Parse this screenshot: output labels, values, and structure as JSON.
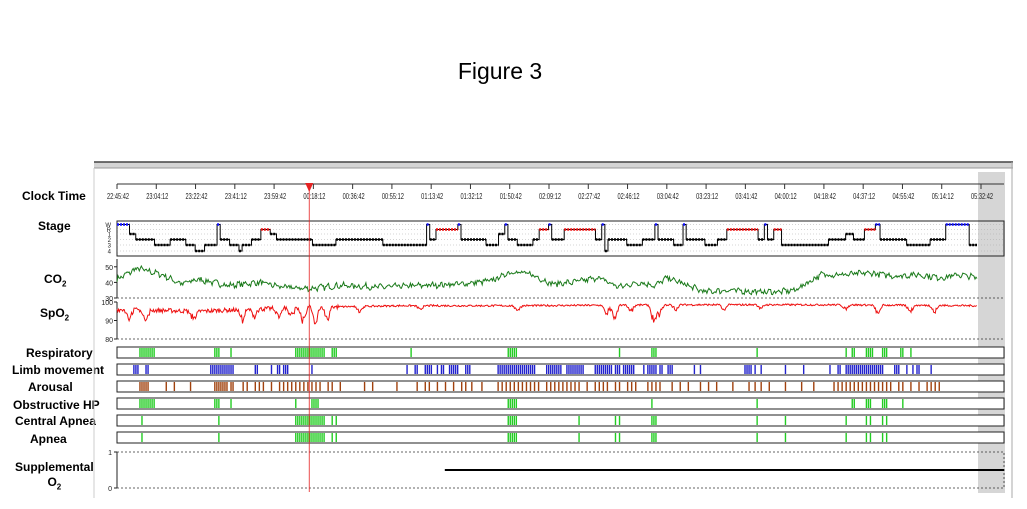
{
  "figure_title": "Figure 3",
  "colors": {
    "stage_black": "#000000",
    "stage_blue": "#1010ff",
    "stage_red": "#ee1111",
    "co2": "#1a7a1a",
    "spo2": "#ee1111",
    "event_green": "#22cc22",
    "limb": "#2222cc",
    "arousal": "#a0410d",
    "cursor": "#e62222",
    "supplemental": "#000000"
  },
  "chart_data": {
    "type": "line",
    "x_axis": {
      "label": "Clock Time",
      "ticks": [
        "22:45:42",
        "23:04:12",
        "23:22:42",
        "23:41:12",
        "23:59:42",
        "00:18:12",
        "00:36:42",
        "00:55:12",
        "01:13:42",
        "01:32:12",
        "01:50:42",
        "02:09:12",
        "02:27:42",
        "02:46:12",
        "03:04:42",
        "03:23:12",
        "03:41:42",
        "04:00:12",
        "04:18:42",
        "04:37:12",
        "04:55:42",
        "05:14:12",
        "05:32:42"
      ],
      "start_minutes": 0,
      "end_minutes": 425,
      "cursor_minutes": 95
    },
    "stage": {
      "label": "Stage",
      "ticks": [
        "W",
        "R",
        "1",
        "2",
        "3",
        "4"
      ],
      "segments": [
        {
          "start": 0,
          "end": 8,
          "stage": "W"
        },
        {
          "start": 8,
          "end": 12,
          "stage": "1"
        },
        {
          "start": 12,
          "end": 24,
          "stage": "2"
        },
        {
          "start": 24,
          "end": 34,
          "stage": "3"
        },
        {
          "start": 34,
          "end": 44,
          "stage": "2"
        },
        {
          "start": 44,
          "end": 50,
          "stage": "3"
        },
        {
          "start": 50,
          "end": 56,
          "stage": "4"
        },
        {
          "start": 56,
          "end": 64,
          "stage": "3"
        },
        {
          "start": 64,
          "end": 66,
          "stage": "W"
        },
        {
          "start": 66,
          "end": 72,
          "stage": "2"
        },
        {
          "start": 72,
          "end": 78,
          "stage": "3"
        },
        {
          "start": 78,
          "end": 80,
          "stage": "4"
        },
        {
          "start": 80,
          "end": 86,
          "stage": "3"
        },
        {
          "start": 86,
          "end": 92,
          "stage": "2"
        },
        {
          "start": 92,
          "end": 98,
          "stage": "R"
        },
        {
          "start": 98,
          "end": 102,
          "stage": "1"
        },
        {
          "start": 102,
          "end": 125,
          "stage": "2"
        },
        {
          "start": 125,
          "end": 140,
          "stage": "3"
        },
        {
          "start": 140,
          "end": 170,
          "stage": "2"
        },
        {
          "start": 170,
          "end": 198,
          "stage": "3"
        },
        {
          "start": 198,
          "end": 200,
          "stage": "W"
        },
        {
          "start": 200,
          "end": 204,
          "stage": "2"
        },
        {
          "start": 204,
          "end": 218,
          "stage": "R"
        },
        {
          "start": 218,
          "end": 220,
          "stage": "W"
        },
        {
          "start": 220,
          "end": 236,
          "stage": "2"
        },
        {
          "start": 236,
          "end": 244,
          "stage": "3"
        },
        {
          "start": 244,
          "end": 248,
          "stage": "1"
        },
        {
          "start": 248,
          "end": 250,
          "stage": "W"
        },
        {
          "start": 250,
          "end": 256,
          "stage": "2"
        },
        {
          "start": 256,
          "end": 266,
          "stage": "3"
        },
        {
          "start": 266,
          "end": 270,
          "stage": "2"
        },
        {
          "start": 270,
          "end": 276,
          "stage": "R"
        },
        {
          "start": 276,
          "end": 278,
          "stage": "W"
        },
        {
          "start": 278,
          "end": 286,
          "stage": "2"
        },
        {
          "start": 286,
          "end": 306,
          "stage": "R"
        },
        {
          "start": 306,
          "end": 310,
          "stage": "2"
        },
        {
          "start": 310,
          "end": 312,
          "stage": "W"
        },
        {
          "start": 312,
          "end": 314,
          "stage": "4"
        },
        {
          "start": 314,
          "end": 326,
          "stage": "2"
        },
        {
          "start": 326,
          "end": 336,
          "stage": "3"
        },
        {
          "start": 336,
          "end": 344,
          "stage": "2"
        },
        {
          "start": 344,
          "end": 346,
          "stage": "W"
        },
        {
          "start": 346,
          "end": 356,
          "stage": "2"
        },
        {
          "start": 356,
          "end": 362,
          "stage": "3"
        },
        {
          "start": 362,
          "end": 364,
          "stage": "W"
        },
        {
          "start": 364,
          "end": 376,
          "stage": "2"
        },
        {
          "start": 376,
          "end": 384,
          "stage": "3"
        },
        {
          "start": 384,
          "end": 390,
          "stage": "2"
        },
        {
          "start": 390,
          "end": 410,
          "stage": "R"
        },
        {
          "start": 410,
          "end": 414,
          "stage": "2"
        },
        {
          "start": 414,
          "end": 416,
          "stage": "W"
        },
        {
          "start": 416,
          "end": 420,
          "stage": "2"
        },
        {
          "start": 420,
          "end": 425,
          "stage": "R"
        },
        {
          "start": 425,
          "end": 455,
          "stage": "3"
        },
        {
          "start": 455,
          "end": 466,
          "stage": "2"
        },
        {
          "start": 466,
          "end": 471,
          "stage": "1"
        },
        {
          "start": 471,
          "end": 478,
          "stage": "2"
        },
        {
          "start": 478,
          "end": 485,
          "stage": "R"
        },
        {
          "start": 485,
          "end": 488,
          "stage": "W"
        },
        {
          "start": 488,
          "end": 505,
          "stage": "2"
        },
        {
          "start": 505,
          "end": 520,
          "stage": "3"
        },
        {
          "start": 520,
          "end": 530,
          "stage": "2"
        },
        {
          "start": 530,
          "end": 545,
          "stage": "W"
        },
        {
          "start": 545,
          "end": 550,
          "stage": "3"
        }
      ]
    },
    "co2": {
      "label": "CO2",
      "ticks": [
        30,
        40,
        50
      ],
      "ylim": [
        30,
        55
      ],
      "levels": [
        {
          "t": 0,
          "v": 42
        },
        {
          "t": 10,
          "v": 49
        },
        {
          "t": 22,
          "v": 45
        },
        {
          "t": 32,
          "v": 39
        },
        {
          "t": 40,
          "v": 42
        },
        {
          "t": 55,
          "v": 38
        },
        {
          "t": 70,
          "v": 40
        },
        {
          "t": 82,
          "v": 37
        },
        {
          "t": 95,
          "v": 36
        },
        {
          "t": 110,
          "v": 38
        },
        {
          "t": 130,
          "v": 37
        },
        {
          "t": 150,
          "v": 38
        },
        {
          "t": 170,
          "v": 39
        },
        {
          "t": 185,
          "v": 41
        },
        {
          "t": 195,
          "v": 47
        },
        {
          "t": 205,
          "v": 45
        },
        {
          "t": 215,
          "v": 39
        },
        {
          "t": 225,
          "v": 40
        },
        {
          "t": 238,
          "v": 43
        },
        {
          "t": 248,
          "v": 37
        },
        {
          "t": 258,
          "v": 40
        },
        {
          "t": 266,
          "v": 38
        },
        {
          "t": 272,
          "v": 43
        },
        {
          "t": 282,
          "v": 38
        },
        {
          "t": 290,
          "v": 34
        },
        {
          "t": 302,
          "v": 35
        },
        {
          "t": 315,
          "v": 34
        },
        {
          "t": 327,
          "v": 34
        },
        {
          "t": 335,
          "v": 35
        },
        {
          "t": 348,
          "v": 45
        },
        {
          "t": 360,
          "v": 45
        },
        {
          "t": 372,
          "v": 46
        },
        {
          "t": 385,
          "v": 44
        },
        {
          "t": 395,
          "v": 45
        },
        {
          "t": 408,
          "v": 43
        },
        {
          "t": 416,
          "v": 45
        },
        {
          "t": 425,
          "v": 43
        }
      ]
    },
    "spo2": {
      "label": "SpO2",
      "ticks": [
        80,
        90,
        100
      ],
      "ylim": [
        80,
        100
      ],
      "baseline": [
        {
          "t": 0,
          "v": 96
        },
        {
          "t": 40,
          "v": 95
        },
        {
          "t": 90,
          "v": 97
        },
        {
          "t": 140,
          "v": 98
        },
        {
          "t": 200,
          "v": 98
        },
        {
          "t": 280,
          "v": 98.5
        },
        {
          "t": 350,
          "v": 98.5
        },
        {
          "t": 425,
          "v": 98
        }
      ],
      "dips": [
        {
          "t": 6,
          "depth": 5
        },
        {
          "t": 14,
          "depth": 7
        },
        {
          "t": 38,
          "depth": 5
        },
        {
          "t": 62,
          "depth": 6
        },
        {
          "t": 68,
          "depth": 4
        },
        {
          "t": 80,
          "depth": 5
        },
        {
          "t": 86,
          "depth": 6
        },
        {
          "t": 92,
          "depth": 8
        },
        {
          "t": 98,
          "depth": 9
        },
        {
          "t": 104,
          "depth": 7
        },
        {
          "t": 120,
          "depth": 3
        },
        {
          "t": 150,
          "depth": 2
        },
        {
          "t": 198,
          "depth": 3
        },
        {
          "t": 242,
          "depth": 5
        },
        {
          "t": 246,
          "depth": 8
        },
        {
          "t": 254,
          "depth": 4
        },
        {
          "t": 265,
          "depth": 9
        },
        {
          "t": 268,
          "depth": 6
        },
        {
          "t": 276,
          "depth": 3
        },
        {
          "t": 300,
          "depth": 3
        },
        {
          "t": 318,
          "depth": 2
        },
        {
          "t": 360,
          "depth": 3
        },
        {
          "t": 376,
          "depth": 5
        },
        {
          "t": 392,
          "depth": 4
        },
        {
          "t": 404,
          "depth": 4
        }
      ]
    },
    "event_channels": [
      {
        "label": "Respiratory",
        "color_key": "event_green",
        "events": [
          11,
          12,
          13,
          14,
          15,
          16,
          17,
          18,
          48,
          49,
          50,
          56,
          88,
          89,
          90,
          91,
          92,
          93,
          94,
          95,
          96,
          97,
          98,
          99,
          100,
          101,
          102,
          106,
          107,
          108,
          145,
          193,
          194,
          195,
          196,
          197,
          248,
          264,
          265,
          266,
          316,
          360,
          363,
          364,
          370,
          371,
          372,
          373,
          378,
          379,
          380,
          387,
          388,
          392
        ]
      },
      {
        "label": "Limb movement",
        "color_key": "limb",
        "events": [
          8,
          9,
          10,
          14,
          15,
          46,
          47,
          48,
          49,
          50,
          51,
          52,
          53,
          54,
          55,
          56,
          57,
          68,
          69,
          76,
          79,
          80,
          82,
          83,
          84,
          96,
          143,
          147,
          148,
          152,
          153,
          154,
          155,
          158,
          160,
          161,
          164,
          165,
          166,
          167,
          168,
          172,
          173,
          174,
          188,
          189,
          190,
          191,
          192,
          193,
          194,
          195,
          196,
          197,
          198,
          199,
          200,
          201,
          202,
          203,
          204,
          205,
          206,
          212,
          213,
          214,
          215,
          216,
          217,
          218,
          219,
          222,
          223,
          224,
          225,
          226,
          227,
          228,
          229,
          230,
          236,
          237,
          238,
          239,
          240,
          241,
          242,
          243,
          244,
          246,
          247,
          248,
          250,
          251,
          252,
          253,
          254,
          255,
          260,
          262,
          263,
          264,
          265,
          266,
          268,
          269,
          272,
          273,
          274,
          285,
          288,
          310,
          311,
          312,
          313,
          315,
          318,
          330,
          339,
          352,
          356,
          357,
          360,
          361,
          362,
          363,
          364,
          365,
          366,
          367,
          368,
          369,
          370,
          371,
          372,
          373,
          374,
          375,
          376,
          377,
          378,
          384,
          385,
          386,
          390,
          393,
          395,
          396,
          402
        ]
      },
      {
        "label": "Arousal",
        "color_key": "arousal",
        "events": [
          11,
          12,
          13,
          14,
          15,
          24,
          28,
          36,
          48,
          49,
          50,
          51,
          52,
          53,
          54,
          56,
          57,
          62,
          64,
          68,
          70,
          72,
          76,
          80,
          82,
          84,
          86,
          88,
          90,
          92,
          94,
          96,
          98,
          100,
          104,
          106,
          110,
          122,
          126,
          138,
          148,
          152,
          154,
          158,
          162,
          166,
          170,
          172,
          175,
          180,
          188,
          190,
          192,
          194,
          196,
          198,
          200,
          202,
          204,
          206,
          208,
          212,
          214,
          216,
          218,
          220,
          222,
          224,
          226,
          228,
          232,
          236,
          238,
          240,
          242,
          246,
          248,
          252,
          254,
          256,
          262,
          264,
          266,
          268,
          274,
          278,
          282,
          288,
          292,
          296,
          304,
          312,
          315,
          318,
          322,
          330,
          338,
          344,
          354,
          356,
          358,
          360,
          362,
          364,
          366,
          368,
          370,
          372,
          374,
          376,
          378,
          380,
          382,
          386,
          388,
          392,
          396,
          400,
          402,
          404,
          406
        ]
      },
      {
        "label": "Obstructive HP",
        "color_key": "event_green",
        "events": [
          11,
          12,
          13,
          14,
          15,
          16,
          17,
          18,
          48,
          49,
          50,
          56,
          88,
          96,
          97,
          98,
          99,
          193,
          194,
          195,
          196,
          197,
          264,
          316,
          363,
          364,
          370,
          371,
          372,
          378,
          379,
          380,
          388
        ]
      },
      {
        "label": "Central Apnea",
        "color_key": "event_green",
        "events": [
          12,
          50,
          88,
          89,
          90,
          91,
          92,
          93,
          94,
          95,
          96,
          97,
          98,
          99,
          100,
          101,
          102,
          106,
          108,
          193,
          194,
          195,
          196,
          197,
          228,
          246,
          248,
          264,
          265,
          266,
          316,
          330,
          360,
          370,
          372,
          378,
          380
        ]
      },
      {
        "label": "Apnea",
        "color_key": "event_green",
        "events": [
          12,
          50,
          88,
          89,
          90,
          91,
          92,
          93,
          94,
          95,
          96,
          97,
          98,
          99,
          100,
          101,
          102,
          106,
          108,
          193,
          194,
          195,
          196,
          197,
          228,
          246,
          248,
          264,
          265,
          266,
          316,
          330,
          360,
          370,
          372,
          378,
          380
        ]
      }
    ],
    "supplemental_o2": {
      "label": "Supplemental O2",
      "ticks": [
        0,
        1
      ],
      "ylim": [
        0,
        1
      ],
      "series": [
        {
          "t": 0,
          "v": 0
        },
        {
          "t": 162,
          "v": 0
        },
        {
          "t": 162,
          "v": 0.5
        },
        {
          "t": 425,
          "v": 0.5
        }
      ]
    }
  }
}
